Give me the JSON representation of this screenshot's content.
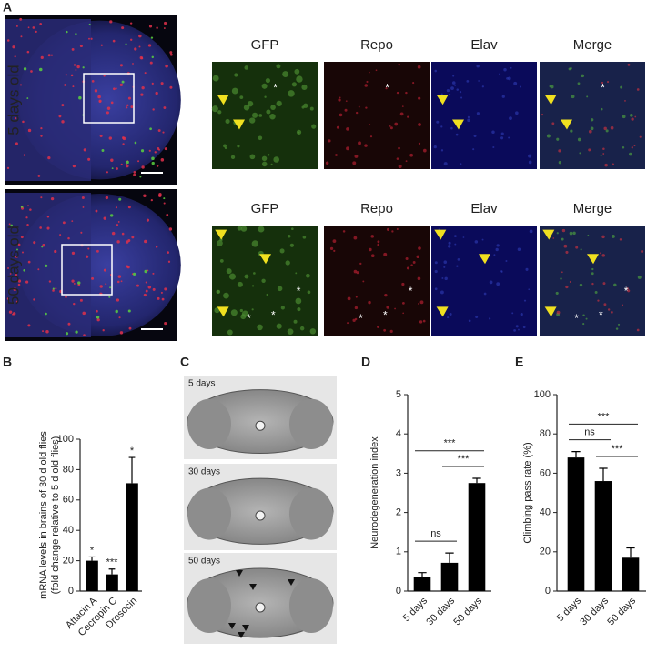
{
  "figure": {
    "panel_a": {
      "letter": "A",
      "rows": [
        {
          "label": "5 days old",
          "channels": [
            "GFP",
            "Repo",
            "Elav",
            "Merge"
          ]
        },
        {
          "label": "50 days old",
          "channels": [
            "GFP",
            "Repo",
            "Elav",
            "Merge"
          ]
        }
      ],
      "marker": "*"
    },
    "panel_c": {
      "letter": "C",
      "labels": [
        "5 days",
        "30 days",
        "50 days"
      ]
    }
  },
  "chart_data": [
    {
      "type": "bar",
      "letter": "B",
      "ylabel": [
        "mRNA levels in  brains of 30 d old flies",
        "(fold change relative to 5 d old flies)"
      ],
      "categories": [
        "Attacin A",
        "Cecropin C",
        "Drosocin"
      ],
      "values": [
        20,
        11,
        71
      ],
      "errors": [
        2.5,
        3.5,
        17
      ],
      "significance": [
        "*",
        "***",
        "*"
      ],
      "color": "#000000",
      "ylim": [
        0,
        100
      ],
      "yticks": [
        0,
        20,
        40,
        60,
        80,
        100
      ]
    },
    {
      "type": "bar",
      "letter": "D",
      "ylabel": [
        "Neurodegeneration index"
      ],
      "categories": [
        "5 days",
        "30 days",
        "50 days"
      ],
      "values": [
        0.35,
        0.72,
        2.75
      ],
      "errors": [
        0.12,
        0.25,
        0.12
      ],
      "comparisons": [
        {
          "pair": [
            "5 days",
            "30 days"
          ],
          "label": "ns"
        },
        {
          "pair": [
            "30 days",
            "50 days"
          ],
          "label": "***"
        },
        {
          "pair": [
            "5 days",
            "50 days"
          ],
          "label": "***"
        }
      ],
      "color": "#000000",
      "ylim": [
        0,
        5
      ],
      "yticks": [
        0,
        1,
        2,
        3,
        4,
        5
      ]
    },
    {
      "type": "bar",
      "letter": "E",
      "ylabel": [
        "Climbing pass rate (%)"
      ],
      "categories": [
        "5 days",
        "30 days",
        "50 days"
      ],
      "values": [
        68,
        56,
        17
      ],
      "errors": [
        3,
        6.5,
        5
      ],
      "comparisons": [
        {
          "pair": [
            "5 days",
            "30 days"
          ],
          "label": "ns"
        },
        {
          "pair": [
            "30 days",
            "50 days"
          ],
          "label": "***"
        },
        {
          "pair": [
            "5 days",
            "50 days"
          ],
          "label": "***"
        }
      ],
      "color": "#000000",
      "ylim": [
        0,
        100
      ],
      "yticks": [
        0,
        20,
        40,
        60,
        80,
        100
      ]
    }
  ]
}
